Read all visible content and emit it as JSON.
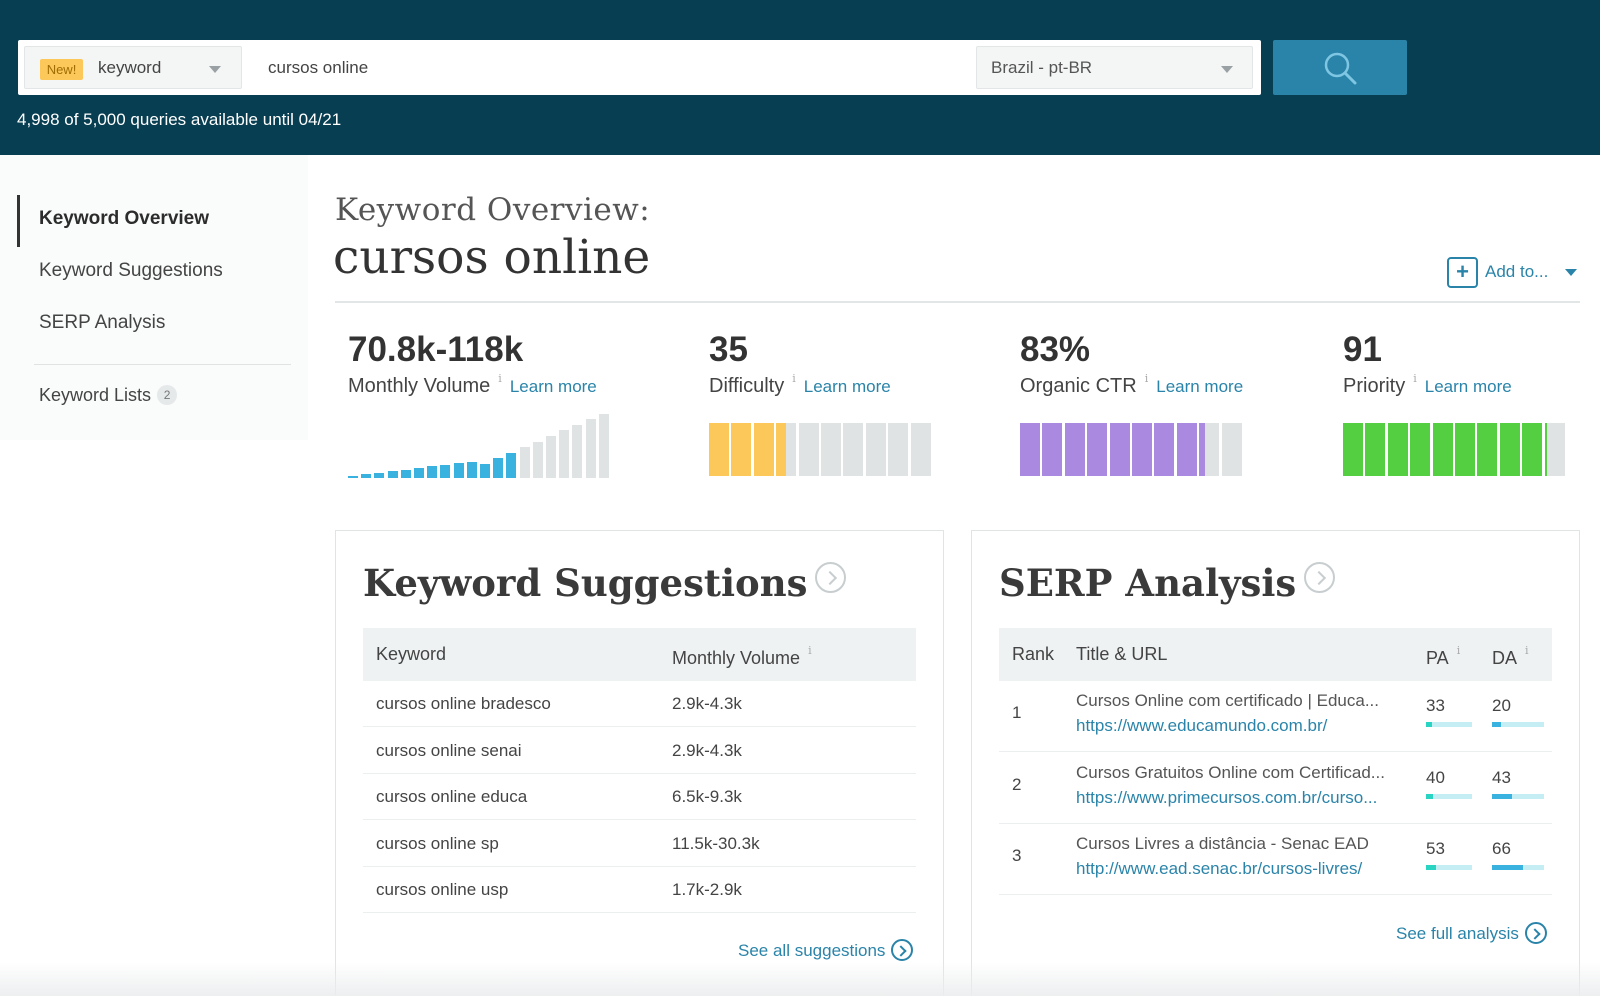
{
  "header": {
    "new_badge": "New!",
    "search_type": "keyword",
    "query": "cursos online",
    "locale": "Brazil - pt-BR",
    "quota": "4,998 of 5,000 queries available until 04/21",
    "search_icon": "search-icon"
  },
  "sidebar": {
    "items": [
      {
        "label": "Keyword Overview",
        "active": true
      },
      {
        "label": "Keyword Suggestions"
      },
      {
        "label": "SERP Analysis"
      }
    ],
    "lists_label": "Keyword Lists",
    "lists_count": "2"
  },
  "overview": {
    "heading": "Keyword Overview:",
    "keyword": "cursos online",
    "add_to": "Add to...",
    "metrics": [
      {
        "value": "70.8k-118k",
        "label": "Monthly Volume",
        "info": "i",
        "learn": "Learn more"
      },
      {
        "value": "35",
        "label": "Difficulty",
        "info": "i",
        "learn": "Learn more",
        "filled": 3.5,
        "total": 10,
        "color": "#fcc85a"
      },
      {
        "value": "83%",
        "label": "Organic CTR",
        "info": "i",
        "learn": "Learn more",
        "filled": 8.3,
        "total": 10,
        "color": "#a98ae0"
      },
      {
        "value": "91",
        "label": "Priority",
        "info": "i",
        "learn": "Learn more",
        "filled": 9.1,
        "total": 10,
        "color": "#55cf42"
      }
    ],
    "volume_bars": {
      "total": 20,
      "highlighted": 13,
      "highlight_color": "#3ab2df",
      "rest_color": "#dfe3e4"
    }
  },
  "suggestions": {
    "title": "Keyword Suggestions",
    "col_keyword": "Keyword",
    "col_volume": "Monthly Volume",
    "info": "i",
    "rows": [
      {
        "keyword": "cursos online bradesco",
        "volume": "2.9k-4.3k"
      },
      {
        "keyword": "cursos online senai",
        "volume": "2.9k-4.3k"
      },
      {
        "keyword": "cursos online educa",
        "volume": "6.5k-9.3k"
      },
      {
        "keyword": "cursos online sp",
        "volume": "11.5k-30.3k"
      },
      {
        "keyword": "cursos online usp",
        "volume": "1.7k-2.9k"
      }
    ],
    "see_all": "See all suggestions"
  },
  "serp": {
    "title": "SERP Analysis",
    "col_rank": "Rank",
    "col_title": "Title & URL",
    "col_pa": "PA",
    "col_da": "DA",
    "info": "i",
    "rows": [
      {
        "rank": "1",
        "title": "Cursos Online com certificado | Educa...",
        "url": "https://www.educamundo.com.br/",
        "pa": "33",
        "da": "20"
      },
      {
        "rank": "2",
        "title": "Cursos Gratuitos Online com Certificad...",
        "url": "https://www.primecursos.com.br/curso...",
        "pa": "40",
        "da": "43"
      },
      {
        "rank": "3",
        "title": "Cursos Livres a distância - Senac EAD",
        "url": "http://www.ead.senac.br/cursos-livres/",
        "pa": "53",
        "da": "66"
      }
    ],
    "pa_color": "#2ad4c2",
    "da_color": "#3ab2df",
    "see_full": "See full analysis"
  }
}
